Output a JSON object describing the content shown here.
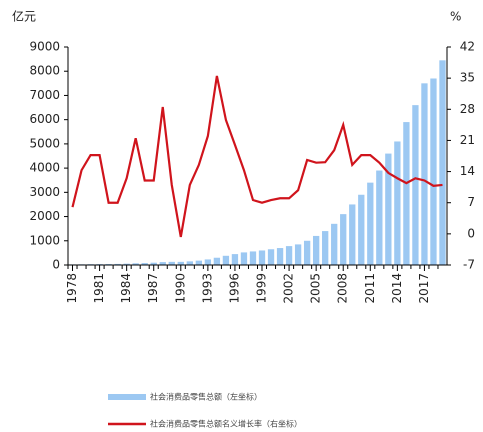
{
  "chart_data": {
    "type": "bar_line",
    "ylabel": "亿元",
    "y2label": "%",
    "x": [
      1978,
      1979,
      1980,
      1981,
      1982,
      1983,
      1984,
      1985,
      1986,
      1987,
      1988,
      1989,
      1990,
      1991,
      1992,
      1993,
      1994,
      1995,
      1996,
      1997,
      1998,
      1999,
      2000,
      2001,
      2002,
      2003,
      2004,
      2005,
      2006,
      2007,
      2008,
      2009,
      2010,
      2011,
      2012,
      2013,
      2014,
      2015,
      2016,
      2017,
      2018,
      2019
    ],
    "xlim": [
      1977.5,
      2019.5
    ],
    "xticks": [
      1978,
      1981,
      1984,
      1987,
      1990,
      1993,
      1996,
      1999,
      2002,
      2005,
      2008,
      2011,
      2014,
      2017
    ],
    "ylim": [
      0,
      9000
    ],
    "yticks": [
      0,
      1000,
      2000,
      3000,
      4000,
      5000,
      6000,
      7000,
      8000,
      9000
    ],
    "y2lim": [
      -7,
      42
    ],
    "y2ticks": [
      -7,
      0,
      7,
      14,
      21,
      28,
      35,
      42
    ],
    "series": [
      {
        "name": "社会消费品零售总额（左坐标）",
        "color": "#9cc8f2",
        "kind": "bar",
        "values": [
          25,
          30,
          35,
          38,
          40,
          45,
          55,
          70,
          80,
          95,
          120,
          130,
          130,
          150,
          180,
          230,
          300,
          380,
          450,
          520,
          560,
          600,
          650,
          700,
          780,
          850,
          1000,
          1200,
          1400,
          1700,
          2100,
          2500,
          2900,
          3400,
          3900,
          4600,
          5100,
          5900,
          6600,
          7500,
          7700,
          8450
        ]
      },
      {
        "name": "社会消费品零售总额名义增长率（右坐标）",
        "color": "#d0141c",
        "kind": "line",
        "axis": "y2",
        "values": [
          6,
          14.3,
          17.7,
          17.7,
          7,
          7,
          12.5,
          21.5,
          12,
          12,
          28.5,
          11,
          -0.7,
          11,
          15.5,
          22,
          35.5,
          25.6,
          20,
          14.3,
          7.6,
          7,
          7.6,
          8,
          8,
          9.8,
          16.6,
          16,
          16.1,
          18.8,
          24.5,
          15.5,
          17.7,
          17.7,
          16,
          13.7,
          12.5,
          11.4,
          12.5,
          12,
          10.8,
          11
        ]
      }
    ]
  }
}
